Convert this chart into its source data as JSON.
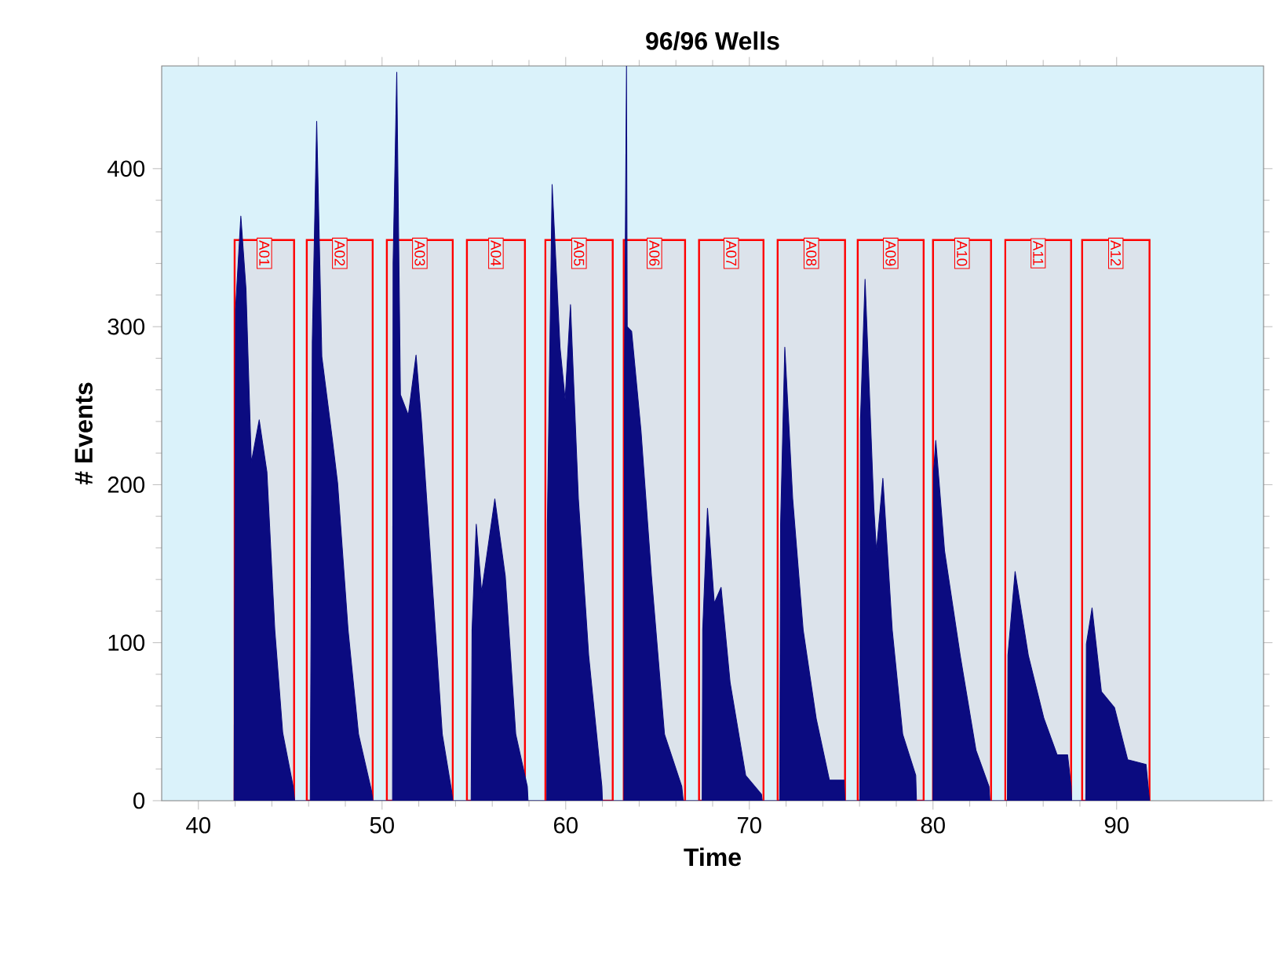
{
  "chart_data": {
    "type": "area",
    "title": "96/96 Wells",
    "xlabel": "Time",
    "ylabel": "# Events",
    "xlim": [
      38,
      98
    ],
    "ylim": [
      0,
      465
    ],
    "xticks": [
      40,
      50,
      60,
      70,
      80,
      90
    ],
    "yticks": [
      0,
      100,
      200,
      300,
      400
    ],
    "grid": false,
    "series": [
      {
        "color": "#0b0b80",
        "x": [
          41.94,
          42.02,
          42.31,
          42.59,
          42.88,
          43.31,
          43.73,
          44.16,
          44.59,
          45.16,
          45.24,
          46.09,
          46.2,
          46.44,
          46.72,
          47.3,
          47.58,
          48.15,
          48.72,
          49.43,
          49.5,
          50.57,
          50.6,
          50.8,
          51.0,
          51.43,
          51.85,
          52.14,
          52.71,
          53.28,
          53.79,
          53.85,
          54.85,
          54.9,
          55.13,
          55.42,
          56.14,
          56.71,
          57.28,
          57.91,
          57.95,
          58.97,
          59.0,
          59.26,
          59.69,
          59.97,
          60.26,
          60.69,
          61.25,
          61.97,
          62.0,
          63.17,
          63.2,
          63.31,
          63.35,
          63.59,
          64.1,
          64.67,
          65.38,
          66.32,
          66.4,
          67.43,
          67.46,
          67.72,
          68.09,
          68.46,
          68.95,
          69.8,
          70.66,
          70.7,
          71.65,
          71.7,
          71.93,
          72.36,
          72.93,
          73.64,
          74.36,
          75.16,
          75.2,
          76.01,
          76.05,
          76.3,
          76.78,
          76.92,
          77.27,
          77.78,
          78.35,
          79.06,
          79.1,
          80.0,
          80.03,
          80.15,
          80.63,
          81.48,
          82.34,
          83.05,
          83.1,
          84.05,
          84.08,
          84.47,
          85.19,
          86.04,
          86.76,
          87.33,
          87.52,
          87.55,
          88.32,
          88.35,
          88.66,
          89.17,
          89.88,
          90.6,
          91.6,
          91.79
        ],
        "values": [
          0,
          311,
          370,
          324,
          214,
          241,
          208,
          108,
          43,
          9,
          0,
          0,
          290,
          430,
          281,
          228,
          201,
          108,
          42,
          6,
          0,
          0,
          340,
          461,
          257,
          244,
          282,
          241,
          142,
          42,
          6,
          0,
          0,
          108,
          175,
          132,
          191,
          142,
          42,
          9,
          0,
          0,
          175,
          390,
          287,
          254,
          314,
          191,
          92,
          9,
          0,
          0,
          274,
          465,
          300,
          297,
          234,
          142,
          42,
          9,
          0,
          0,
          108,
          185,
          125,
          135,
          75,
          16,
          4,
          0,
          0,
          175,
          287,
          191,
          108,
          52,
          13,
          13,
          0,
          0,
          241,
          330,
          185,
          158,
          204,
          108,
          42,
          16,
          0,
          0,
          208,
          228,
          158,
          92,
          32,
          9,
          0,
          0,
          92,
          145,
          92,
          52,
          29,
          29,
          9,
          0,
          0,
          99,
          122,
          69,
          59,
          26,
          23,
          0
        ]
      }
    ],
    "bands": [
      {
        "axis": "x",
        "from": 41.97,
        "to": 45.21,
        "label": "A01"
      },
      {
        "axis": "x",
        "from": 45.9,
        "to": 49.49,
        "label": "A02"
      },
      {
        "axis": "x",
        "from": 50.26,
        "to": 53.85,
        "label": "A03"
      },
      {
        "axis": "x",
        "from": 54.62,
        "to": 57.78,
        "label": "A04"
      },
      {
        "axis": "x",
        "from": 58.89,
        "to": 62.56,
        "label": "A05"
      },
      {
        "axis": "x",
        "from": 63.16,
        "to": 66.5,
        "label": "A06"
      },
      {
        "axis": "x",
        "from": 67.26,
        "to": 70.77,
        "label": "A07"
      },
      {
        "axis": "x",
        "from": 71.54,
        "to": 75.21,
        "label": "A08"
      },
      {
        "axis": "x",
        "from": 75.9,
        "to": 79.49,
        "label": "A09"
      },
      {
        "axis": "x",
        "from": 80.0,
        "to": 83.16,
        "label": "A10"
      },
      {
        "axis": "x",
        "from": 83.93,
        "to": 87.52,
        "label": "A11"
      },
      {
        "axis": "x",
        "from": 88.12,
        "to": 91.79,
        "label": "A12"
      }
    ]
  }
}
